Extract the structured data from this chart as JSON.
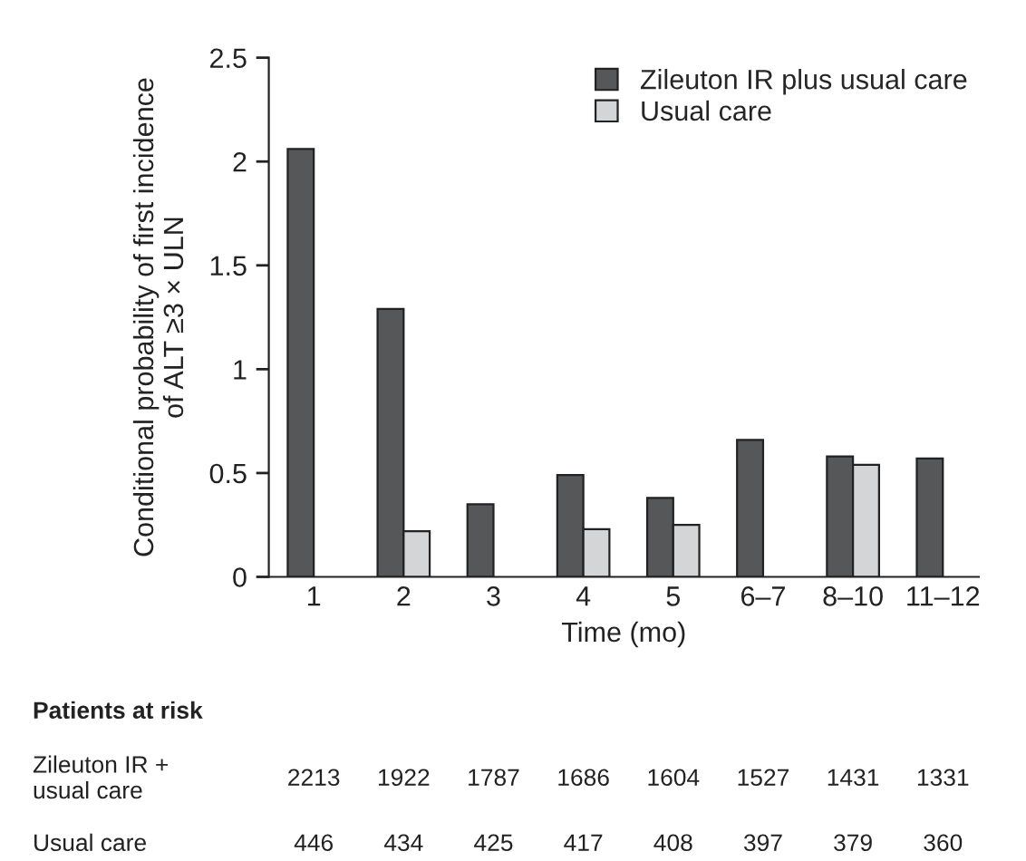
{
  "chart_data": {
    "type": "bar",
    "categories": [
      "1",
      "2",
      "3",
      "4",
      "5",
      "6–7",
      "8–10",
      "11–12"
    ],
    "series": [
      {
        "name": "Zileuton IR plus usual care",
        "color": "#555759",
        "values": [
          2.06,
          1.29,
          0.35,
          0.49,
          0.38,
          0.66,
          0.58,
          0.57
        ]
      },
      {
        "name": "Usual care",
        "color": "#d4d5d6",
        "values": [
          null,
          0.22,
          null,
          0.23,
          0.25,
          null,
          0.54,
          null
        ]
      }
    ],
    "xlabel": "Time (mo)",
    "ylabel": "Conditional probability of first incidence\nof ALT ≥3 × ULN",
    "ylim": [
      0,
      2.5
    ],
    "yticks": [
      0,
      0.5,
      1,
      1.5,
      2,
      2.5
    ],
    "legend": "top right",
    "grid": false,
    "annotations": [
      "Patients at risk",
      "Zileuton IR +\nusual care",
      "2213",
      "1922",
      "1787",
      "1686",
      "1604",
      "1527",
      "1431",
      "1331",
      "Usual care",
      "446",
      "434",
      "425",
      "417",
      "408",
      "397",
      "379",
      "360"
    ]
  }
}
